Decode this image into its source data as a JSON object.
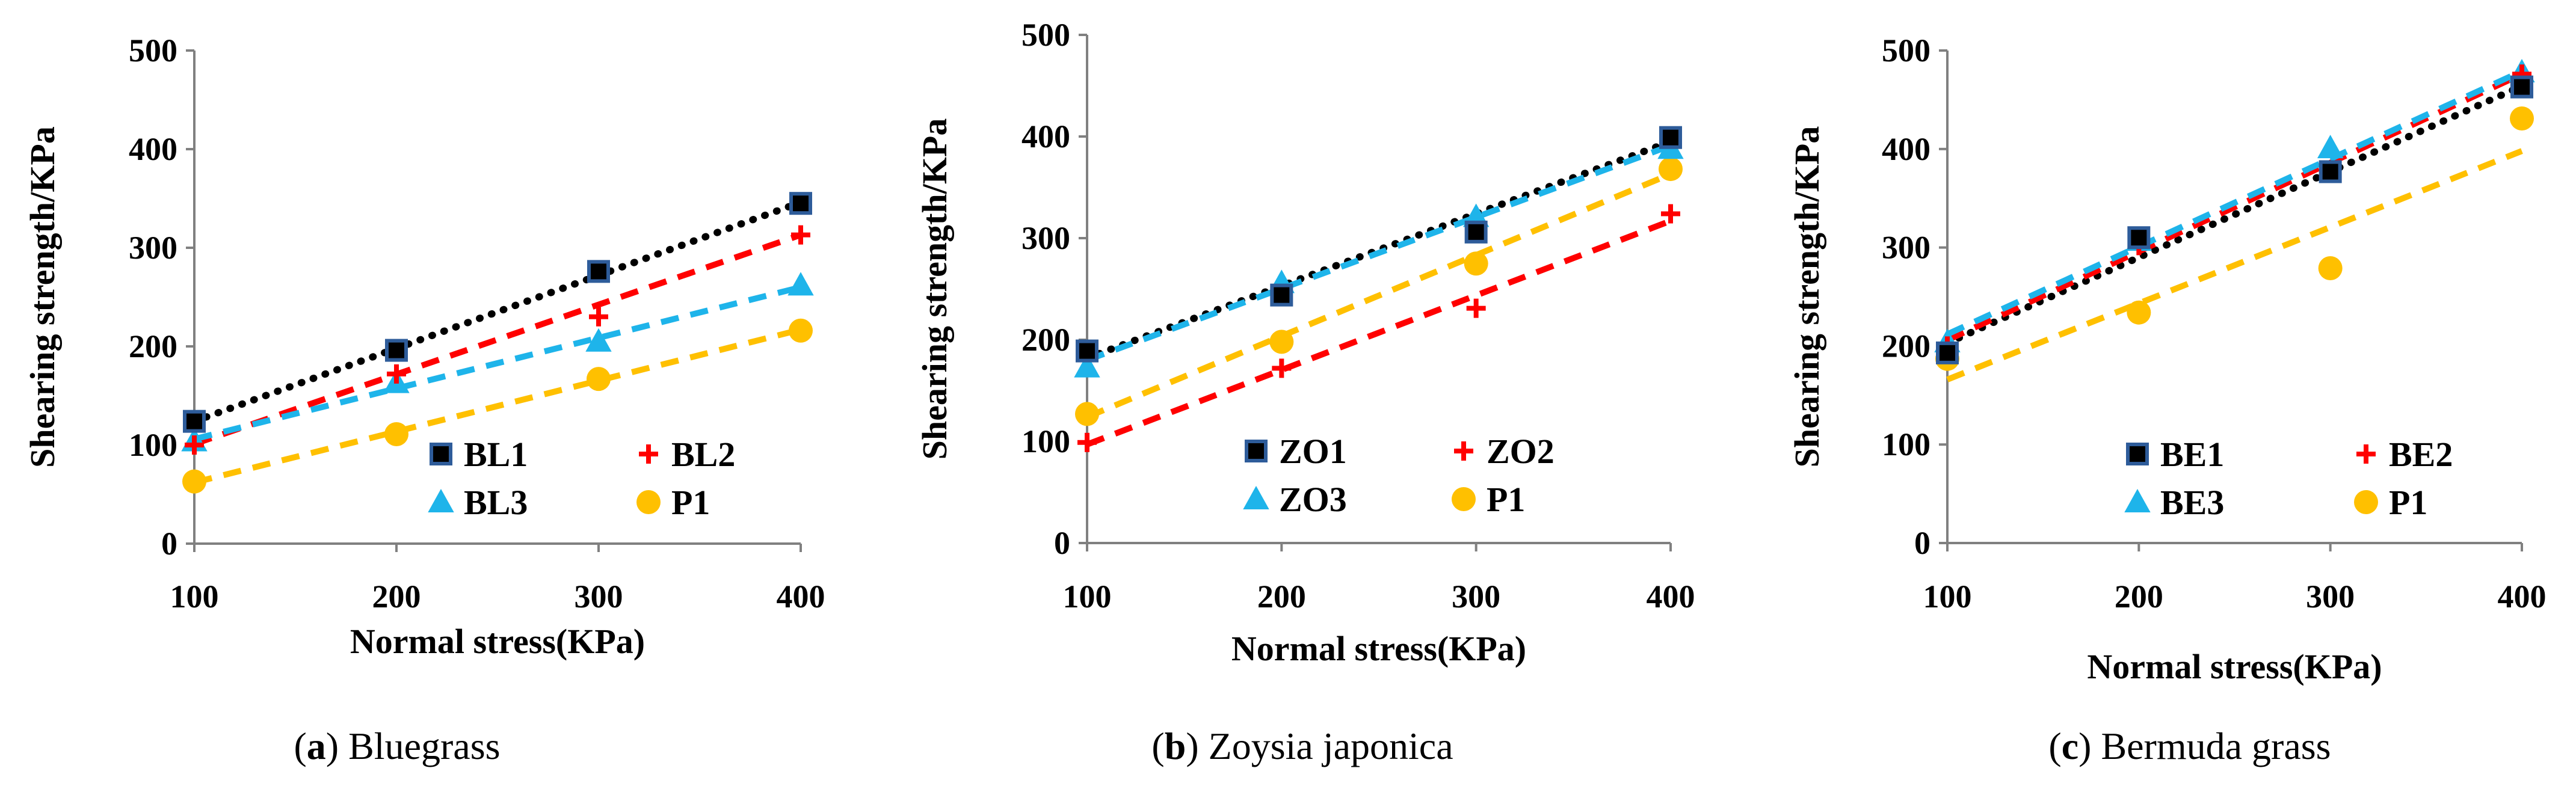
{
  "colors": {
    "black": "#000000",
    "red": "#FF0000",
    "blue": "#1EB4EA",
    "yellow": "#FFC000",
    "navy": "#2E5C9A",
    "axis": "#808080"
  },
  "chart_data": [
    {
      "type": "scatter",
      "caption_letter": "a",
      "caption_text": "Bluegrass",
      "xlabel": "Normal stress(KPa)",
      "ylabel": "Shearing strength/KPa",
      "xlim": [
        100,
        400
      ],
      "ylim": [
        0,
        500
      ],
      "xticks": [
        "100",
        "200",
        "300",
        "400"
      ],
      "yticks": [
        "0",
        "100",
        "200",
        "300",
        "400",
        "500"
      ],
      "legend_position": "bottom-right",
      "series": [
        {
          "name": "BL1",
          "marker": "square",
          "color": "#000000",
          "line": "dotted",
          "x": [
            100,
            200,
            300,
            400
          ],
          "y": [
            124,
            196,
            276,
            345
          ],
          "fit": [
            124,
            346
          ]
        },
        {
          "name": "BL2",
          "marker": "plus",
          "color": "#FF0000",
          "line": "dashed",
          "x": [
            100,
            200,
            300,
            400
          ],
          "y": [
            100,
            172,
            230,
            313
          ],
          "fit": [
            101,
            313
          ]
        },
        {
          "name": "BL3",
          "marker": "triangle",
          "color": "#1EB4EA",
          "line": "dashed",
          "x": [
            100,
            200,
            300,
            400
          ],
          "y": [
            104,
            163,
            205,
            262
          ],
          "fit": [
            106,
            260
          ]
        },
        {
          "name": "P1",
          "marker": "circle",
          "color": "#FFC000",
          "line": "dashed",
          "x": [
            100,
            200,
            300,
            400
          ],
          "y": [
            63,
            111,
            167,
            216
          ],
          "fit": [
            62,
            217
          ]
        }
      ]
    },
    {
      "type": "scatter",
      "caption_letter": "b",
      "caption_text": "Zoysia japonica",
      "xlabel": "Normal stress(KPa)",
      "ylabel": "Shearing strength/KPa",
      "xlim": [
        100,
        400
      ],
      "ylim": [
        0,
        500
      ],
      "xticks": [
        "100",
        "200",
        "300",
        "400"
      ],
      "yticks": [
        "0",
        "100",
        "200",
        "300",
        "400",
        "500"
      ],
      "legend_position": "bottom-right",
      "series": [
        {
          "name": "ZO1",
          "marker": "square",
          "color": "#000000",
          "line": "dotted",
          "x": [
            100,
            200,
            300,
            400
          ],
          "y": [
            189,
            244,
            306,
            399
          ],
          "fit": [
            182,
            395
          ]
        },
        {
          "name": "ZO2",
          "marker": "plus",
          "color": "#FF0000",
          "line": "dashed",
          "x": [
            100,
            200,
            300,
            400
          ],
          "y": [
            99,
            172,
            231,
            324
          ],
          "fit": [
            97,
            317
          ]
        },
        {
          "name": "ZO3",
          "marker": "triangle",
          "color": "#1EB4EA",
          "line": "dashed",
          "x": [
            100,
            200,
            300,
            400
          ],
          "y": [
            173,
            256,
            321,
            388
          ],
          "fit": [
            180,
            391
          ]
        },
        {
          "name": "P1",
          "marker": "circle",
          "color": "#FFC000",
          "line": "dashed",
          "x": [
            100,
            200,
            300,
            400
          ],
          "y": [
            127,
            198,
            275,
            368
          ],
          "fit": [
            124,
            363
          ]
        }
      ]
    },
    {
      "type": "scatter",
      "caption_letter": "c",
      "caption_text": "Bermuda grass",
      "xlabel": "Normal stress(KPa)",
      "ylabel": "Shearing strength/KPa",
      "xlim": [
        100,
        400
      ],
      "ylim": [
        0,
        500
      ],
      "xticks": [
        "100",
        "200",
        "300",
        "400"
      ],
      "yticks": [
        "0",
        "100",
        "200",
        "300",
        "400",
        "500"
      ],
      "legend_position": "bottom-right",
      "series": [
        {
          "name": "BE1",
          "marker": "square",
          "color": "#000000",
          "line": "dotted",
          "x": [
            100,
            200,
            300,
            400
          ],
          "y": [
            193,
            310,
            377,
            463
          ],
          "fit": [
            203,
            464
          ]
        },
        {
          "name": "BE2",
          "marker": "plus",
          "color": "#FF0000",
          "line": "dashed",
          "x": [
            100,
            200,
            300,
            400
          ],
          "y": [
            200,
            302,
            378,
            476
          ],
          "fit": [
            206,
            476
          ]
        },
        {
          "name": "BE3",
          "marker": "triangle",
          "color": "#1EB4EA",
          "line": "dashed",
          "x": [
            100,
            200,
            300,
            400
          ],
          "y": [
            204,
            307,
            401,
            478
          ],
          "fit": [
            212,
            479
          ]
        },
        {
          "name": "P1",
          "marker": "circle",
          "color": "#FFC000",
          "line": "dashed",
          "x": [
            100,
            200,
            300,
            400
          ],
          "y": [
            187,
            234,
            279,
            431
          ],
          "fit": [
            166,
            398
          ]
        }
      ]
    }
  ]
}
